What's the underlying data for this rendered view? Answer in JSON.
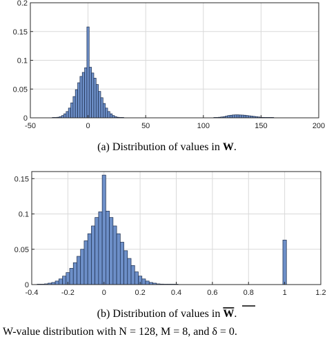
{
  "colors": {
    "bar_fill": "#6d8fc8",
    "bar_stroke": "#1a2b4a",
    "grid": "#d9d9d9",
    "axis": "#262626"
  },
  "chart_data": [
    {
      "type": "bar",
      "caption_prefix": "(a) Distribution of values in ",
      "caption_symbol": "W",
      "caption_suffix": ".",
      "xlim": [
        -50,
        200
      ],
      "ylim": [
        0,
        0.2
      ],
      "x_ticks": [
        "-50",
        "0",
        "50",
        "100",
        "150",
        "200"
      ],
      "y_ticks": [
        "0",
        "0.05",
        "0.1",
        "0.15",
        "0.2"
      ],
      "grid": true,
      "bin_width": 2,
      "x": [
        -30,
        -28,
        -26,
        -24,
        -22,
        -20,
        -18,
        -16,
        -14,
        -12,
        -10,
        -8,
        -6,
        -4,
        -2,
        0,
        2,
        4,
        6,
        8,
        10,
        12,
        14,
        16,
        18,
        20,
        22,
        24,
        26,
        28,
        30,
        110,
        112,
        114,
        116,
        118,
        120,
        122,
        124,
        126,
        128,
        130,
        132,
        134,
        136,
        138,
        140,
        142,
        144,
        146,
        148,
        150,
        152,
        154,
        156,
        158,
        160
      ],
      "values": [
        0.0003,
        0.0006,
        0.001,
        0.002,
        0.004,
        0.007,
        0.011,
        0.017,
        0.026,
        0.037,
        0.049,
        0.061,
        0.072,
        0.079,
        0.087,
        0.158,
        0.088,
        0.078,
        0.069,
        0.058,
        0.046,
        0.035,
        0.025,
        0.017,
        0.011,
        0.007,
        0.004,
        0.002,
        0.001,
        0.0006,
        0.0003,
        0.0003,
        0.0006,
        0.001,
        0.0015,
        0.002,
        0.003,
        0.004,
        0.0045,
        0.005,
        0.0052,
        0.0052,
        0.005,
        0.0048,
        0.0045,
        0.004,
        0.0035,
        0.003,
        0.0025,
        0.002,
        0.0015,
        0.001,
        0.0008,
        0.0006,
        0.0004,
        0.0003,
        0.0002
      ]
    },
    {
      "type": "bar",
      "caption_prefix": "(b) Distribution of values in ",
      "caption_symbol": "W",
      "caption_suffix": ".",
      "caption_overline": true,
      "xlim": [
        -0.4,
        1.2
      ],
      "ylim": [
        0,
        0.16
      ],
      "x_ticks": [
        "-0.4",
        "-0.2",
        "0",
        "0.2",
        "0.4",
        "0.6",
        "0.8",
        "1",
        "1.2"
      ],
      "y_ticks": [
        "0",
        "0.05",
        "0.1",
        "0.15"
      ],
      "grid": true,
      "bin_width": 0.02,
      "x": [
        -0.36,
        -0.34,
        -0.32,
        -0.3,
        -0.28,
        -0.26,
        -0.24,
        -0.22,
        -0.2,
        -0.18,
        -0.16,
        -0.14,
        -0.12,
        -0.1,
        -0.08,
        -0.06,
        -0.04,
        -0.02,
        0.0,
        0.02,
        0.04,
        0.06,
        0.08,
        0.1,
        0.12,
        0.14,
        0.16,
        0.18,
        0.2,
        0.22,
        0.24,
        0.26,
        0.28,
        0.3,
        0.32,
        0.34,
        0.36,
        0.38,
        0.4,
        1.0
      ],
      "values": [
        0.0003,
        0.0005,
        0.001,
        0.002,
        0.003,
        0.005,
        0.008,
        0.012,
        0.017,
        0.023,
        0.031,
        0.04,
        0.05,
        0.062,
        0.072,
        0.083,
        0.095,
        0.103,
        0.155,
        0.104,
        0.095,
        0.083,
        0.072,
        0.06,
        0.048,
        0.037,
        0.027,
        0.018,
        0.012,
        0.008,
        0.005,
        0.003,
        0.002,
        0.001,
        0.0007,
        0.0005,
        0.0003,
        0.0002,
        0.0001,
        0.063
      ]
    }
  ],
  "bottom_text": "W-value distribution with N = 128, M = 8, and δ = 0."
}
